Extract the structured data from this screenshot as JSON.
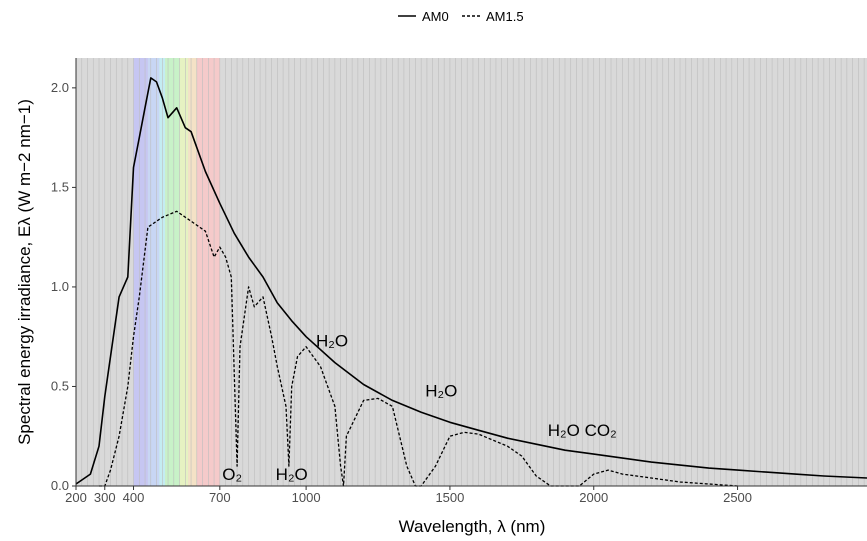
{
  "chart_data": {
    "type": "line",
    "xlabel": "Wavelength, λ (nm)",
    "ylabel": "Spectral energy irradiance, Eλ (W m−2 nm−1)",
    "xlim": [
      200,
      2950
    ],
    "ylim": [
      0,
      2.15
    ],
    "x_ticks": [
      200,
      300,
      400,
      700,
      1000,
      1500,
      2000,
      2500
    ],
    "y_ticks": [
      0.0,
      0.5,
      1.0,
      1.5,
      2.0
    ],
    "grid": false,
    "background_color": "#d9d9d9",
    "visible_bands": [
      {
        "from": 400,
        "to": 450,
        "color": "#c6c6f2"
      },
      {
        "from": 450,
        "to": 490,
        "color": "#c8d6f4"
      },
      {
        "from": 490,
        "to": 510,
        "color": "#c4ecf2"
      },
      {
        "from": 510,
        "to": 560,
        "color": "#c8f2c8"
      },
      {
        "from": 560,
        "to": 590,
        "color": "#e6f2c2"
      },
      {
        "from": 590,
        "to": 620,
        "color": "#f4e2c6"
      },
      {
        "from": 620,
        "to": 700,
        "color": "#f5caca"
      }
    ],
    "legend": {
      "position": "top",
      "entries": [
        "AM0",
        "AM1.5"
      ]
    },
    "series": [
      {
        "name": "AM0",
        "line": "solid",
        "x": [
          200,
          250,
          280,
          300,
          320,
          350,
          380,
          400,
          420,
          440,
          460,
          480,
          500,
          520,
          550,
          580,
          600,
          650,
          700,
          750,
          800,
          850,
          900,
          950,
          1000,
          1100,
          1200,
          1300,
          1400,
          1500,
          1600,
          1700,
          1800,
          1900,
          2000,
          2100,
          2200,
          2300,
          2400,
          2500,
          2600,
          2700,
          2800,
          2950
        ],
        "y": [
          0.01,
          0.06,
          0.2,
          0.45,
          0.65,
          0.95,
          1.05,
          1.6,
          1.75,
          1.9,
          2.05,
          2.03,
          1.95,
          1.85,
          1.9,
          1.8,
          1.78,
          1.58,
          1.42,
          1.27,
          1.15,
          1.05,
          0.92,
          0.83,
          0.75,
          0.62,
          0.51,
          0.43,
          0.37,
          0.32,
          0.28,
          0.24,
          0.21,
          0.18,
          0.16,
          0.14,
          0.12,
          0.105,
          0.09,
          0.08,
          0.07,
          0.06,
          0.05,
          0.04
        ]
      },
      {
        "name": "AM1.5",
        "line": "dashed",
        "x": [
          280,
          300,
          320,
          350,
          380,
          400,
          420,
          450,
          500,
          550,
          600,
          650,
          680,
          700,
          720,
          740,
          760,
          770,
          800,
          820,
          850,
          880,
          900,
          930,
          940,
          950,
          970,
          1000,
          1050,
          1100,
          1120,
          1130,
          1140,
          1200,
          1250,
          1300,
          1350,
          1380,
          1400,
          1450,
          1500,
          1550,
          1600,
          1700,
          1750,
          1800,
          1850,
          1900,
          1950,
          2000,
          2050,
          2100,
          2200,
          2300,
          2400,
          2500
        ],
        "y": [
          0.0,
          0.0,
          0.08,
          0.25,
          0.5,
          0.75,
          0.95,
          1.3,
          1.35,
          1.38,
          1.33,
          1.28,
          1.15,
          1.2,
          1.15,
          1.05,
          0.1,
          0.7,
          1.0,
          0.9,
          0.95,
          0.75,
          0.6,
          0.4,
          0.1,
          0.5,
          0.65,
          0.7,
          0.6,
          0.4,
          0.1,
          0.0,
          0.25,
          0.43,
          0.44,
          0.4,
          0.1,
          0.0,
          0.0,
          0.1,
          0.25,
          0.27,
          0.26,
          0.2,
          0.15,
          0.05,
          0.0,
          0.0,
          0.0,
          0.06,
          0.08,
          0.06,
          0.04,
          0.02,
          0.01,
          0.0
        ]
      }
    ],
    "annotations": [
      {
        "x": 743,
        "y": 0.03,
        "text": "O₂"
      },
      {
        "x": 950,
        "y": 0.03,
        "text": "H₂O"
      },
      {
        "x": 1090,
        "y": 0.7,
        "text": "H₂O"
      },
      {
        "x": 1470,
        "y": 0.45,
        "text": "H₂O"
      },
      {
        "x": 1960,
        "y": 0.25,
        "text": "H₂O CO₂"
      }
    ]
  }
}
